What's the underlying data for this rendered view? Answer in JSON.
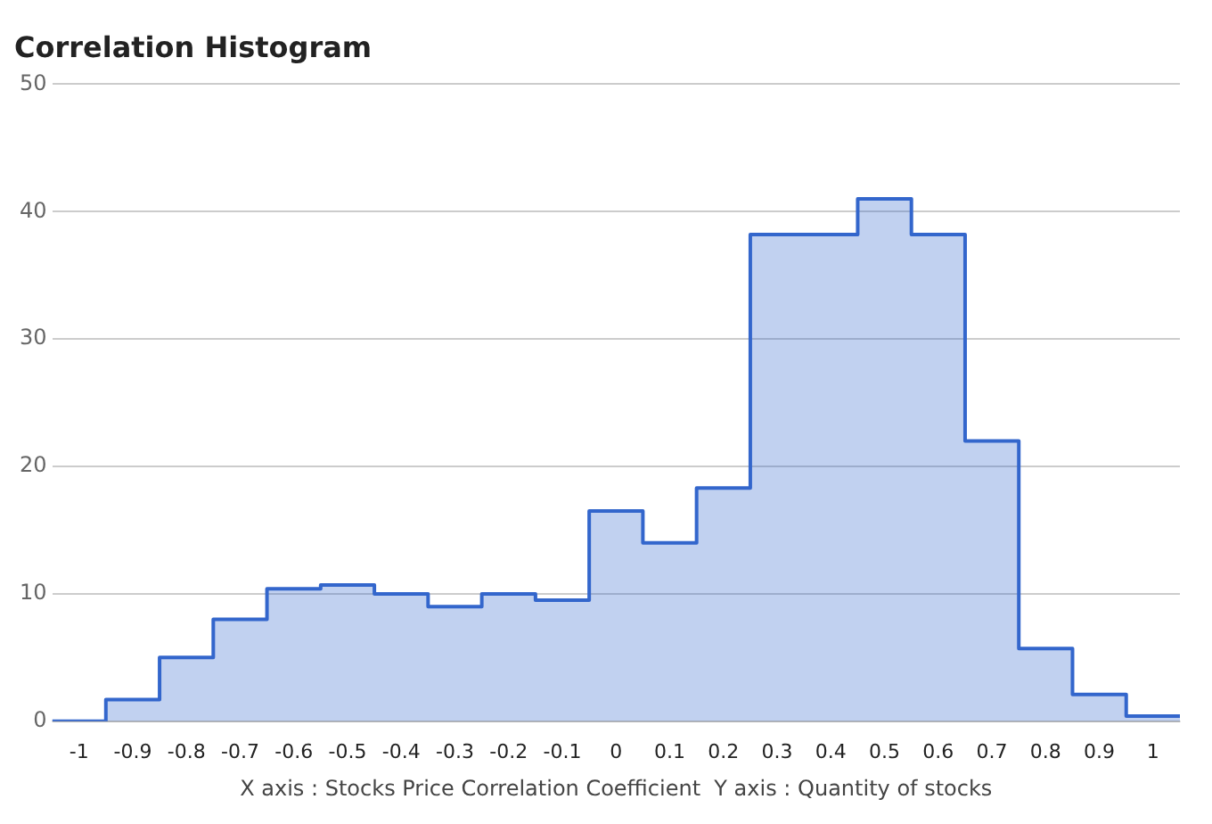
{
  "chart_data": {
    "type": "histogram",
    "title": "Correlation Histogram",
    "xlabel": "X axis : Stocks Price Correlation Coefficient  Y axis : Quantity of stocks",
    "bins": [
      -1.05,
      -0.95,
      -0.85,
      -0.75,
      -0.65,
      -0.55,
      -0.45,
      -0.35,
      -0.25,
      -0.15,
      -0.05,
      0.05,
      0.15,
      0.25,
      0.35,
      0.45,
      0.55,
      0.65,
      0.75,
      0.85,
      0.95,
      1.05
    ],
    "values": [
      0,
      1.7,
      5,
      8,
      10.4,
      10.7,
      10,
      9,
      10,
      9.5,
      16.5,
      14,
      18.3,
      38.2,
      38.2,
      41,
      38.2,
      22,
      5.7,
      2.1,
      0.4
    ],
    "color": "#3366cc",
    "xlim": [
      -1.05,
      1.05
    ],
    "xticks": [
      -1,
      -0.9,
      -0.8,
      -0.7,
      -0.6,
      -0.5,
      -0.4,
      -0.3,
      -0.2,
      -0.1,
      0,
      0.1,
      0.2,
      0.3,
      0.4,
      0.5,
      0.6,
      0.7,
      0.8,
      0.9,
      1
    ],
    "ylim": [
      0,
      50
    ],
    "yticks": [
      0,
      10,
      20,
      30,
      40,
      50
    ],
    "grid": "y",
    "legend": false
  }
}
